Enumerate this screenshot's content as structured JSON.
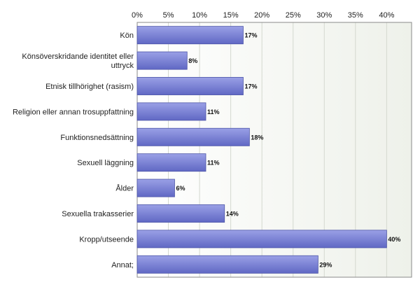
{
  "chart_data": {
    "type": "bar",
    "orientation": "horizontal",
    "title": "",
    "xlabel": "",
    "ylabel": "",
    "xlim": [
      0,
      44
    ],
    "ticks": [
      "0%",
      "5%",
      "10%",
      "15%",
      "20%",
      "25%",
      "30%",
      "35%",
      "40%"
    ],
    "tick_values": [
      0,
      5,
      10,
      15,
      20,
      25,
      30,
      35,
      40
    ],
    "tick_position": "top",
    "grid": true,
    "legend": "none",
    "categories": [
      [
        "Kön"
      ],
      [
        "Könsöverskridande identitet eller",
        "uttryck"
      ],
      [
        "Etnisk tillhörighet (rasism)"
      ],
      [
        "Religion eller annan trosuppfattning"
      ],
      [
        "Funktionsnedsättning"
      ],
      [
        "Sexuell läggning"
      ],
      [
        "Ålder"
      ],
      [
        "Sexuella trakasserier"
      ],
      [
        "Kropp/utseende"
      ],
      [
        "Annat;"
      ]
    ],
    "values": [
      17,
      8,
      17,
      11,
      18,
      11,
      6,
      14,
      40,
      29
    ],
    "value_labels": [
      "17%",
      "8%",
      "17%",
      "11%",
      "18%",
      "11%",
      "6%",
      "14%",
      "40%",
      "29%"
    ],
    "colors": {
      "bar_top": "#9aa0e6",
      "bar_bottom": "#6068c4",
      "bar_edge": "#4d55a8",
      "plot_bg_left": "#ffffff",
      "plot_bg_right": "#eef1ea",
      "grid": "#d4d8cf",
      "frame": "#8a8a8a"
    }
  }
}
